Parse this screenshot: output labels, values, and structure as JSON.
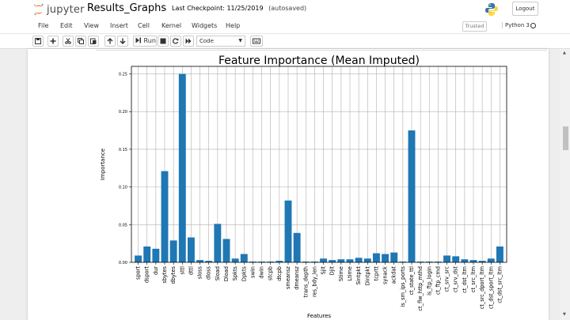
{
  "header": {
    "app_name": "jupyter",
    "notebook_title": "Results_Graphs",
    "checkpoint": "Last Checkpoint: 11/25/2019",
    "autosave": "(autosaved)",
    "logout_label": "Logout"
  },
  "menu": {
    "items": [
      "File",
      "Edit",
      "View",
      "Insert",
      "Cell",
      "Kernel",
      "Widgets",
      "Help"
    ],
    "trusted_label": "Trusted",
    "kernel_label": "Python 3"
  },
  "toolbar": {
    "run_label": "Run",
    "cell_type": "Code",
    "icons": [
      "save-icon",
      "plus-icon",
      "cut-icon",
      "copy-icon",
      "paste-icon",
      "arrow-up-icon",
      "arrow-down-icon",
      "step-forward-icon",
      "stop-icon",
      "restart-icon",
      "fast-forward-icon",
      "keyboard-icon"
    ]
  },
  "chart_data": {
    "type": "bar",
    "title": "Feature Importance (Mean Imputed)",
    "xlabel": "Features",
    "ylabel": "Importance",
    "ylim": [
      0,
      0.26
    ],
    "yticks": [
      "0.00",
      "0.05",
      "0.10",
      "0.15",
      "0.20",
      "0.25"
    ],
    "grid": true,
    "bar_color": "#1f77b4",
    "categories": [
      "sport",
      "dsport",
      "dur",
      "sbytes",
      "dbytes",
      "sttl",
      "dttl",
      "sloss",
      "dloss",
      "Sload",
      "Dload",
      "Spkts",
      "Dpkts",
      "swin",
      "dwin",
      "stcpb",
      "dtcpb",
      "smeansz",
      "dmeansz",
      "trans_depth",
      "res_bdy_len",
      "Sjit",
      "Djit",
      "Stime",
      "Ltime",
      "Sintpkt",
      "Dintpkt",
      "tcprtt",
      "synack",
      "ackdat",
      "is_sm_ips_ports",
      "ct_state_ttl",
      "ct_flw_http_mthd",
      "is_ftp_login",
      "ct_ftp_cmd",
      "ct_srv_src",
      "ct_srv_dst",
      "ct_dst_ltm",
      "ct_src_ltm",
      "ct_src_dport_ltm",
      "ct_dst_sport_ltm",
      "ct_dst_src_ltm"
    ],
    "values": [
      0.009,
      0.021,
      0.018,
      0.121,
      0.029,
      0.25,
      0.033,
      0.003,
      0.002,
      0.051,
      0.031,
      0.005,
      0.011,
      0.001,
      0.001,
      0.001,
      0.002,
      0.082,
      0.039,
      0.001,
      0.001,
      0.005,
      0.003,
      0.004,
      0.004,
      0.006,
      0.005,
      0.012,
      0.011,
      0.013,
      0.001,
      0.175,
      0.001,
      0.001,
      0.001,
      0.009,
      0.008,
      0.004,
      0.003,
      0.002,
      0.005,
      0.021
    ]
  }
}
